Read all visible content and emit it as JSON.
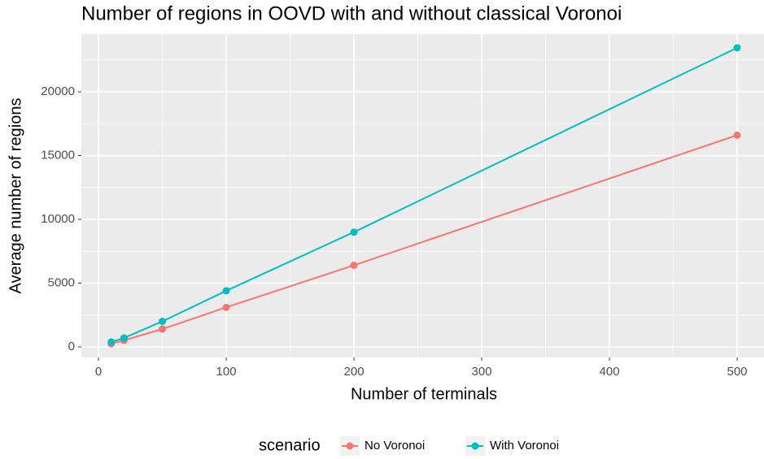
{
  "chart_data": {
    "type": "line",
    "title": "Number of regions in OOVD with and without classical Voronoi",
    "x_label": "Number of terminals",
    "y_label": "Average number of regions",
    "x": [
      10,
      20,
      50,
      100,
      200,
      500
    ],
    "series": [
      {
        "name": "No Voronoi",
        "color": "#f8766d",
        "values": [
          250,
          510,
          1400,
          3100,
          6400,
          16600
        ]
      },
      {
        "name": "With Voronoi",
        "color": "#00bfc4",
        "values": [
          380,
          700,
          2000,
          4400,
          9000,
          23450
        ]
      }
    ],
    "xlim": [
      -13.4,
      521
    ],
    "xticks": [
      0,
      100,
      200,
      300,
      400,
      500
    ],
    "x_minor_ticks": [
      50,
      150,
      250,
      350,
      450
    ],
    "ylim": [
      -828,
      24522
    ],
    "yticks": [
      0,
      5000,
      10000,
      15000,
      20000
    ],
    "y_minor_ticks": [
      2500,
      7500,
      12500,
      17500,
      22500
    ],
    "grid": true,
    "legend_title": "scenario",
    "legend_position": "bottom"
  }
}
